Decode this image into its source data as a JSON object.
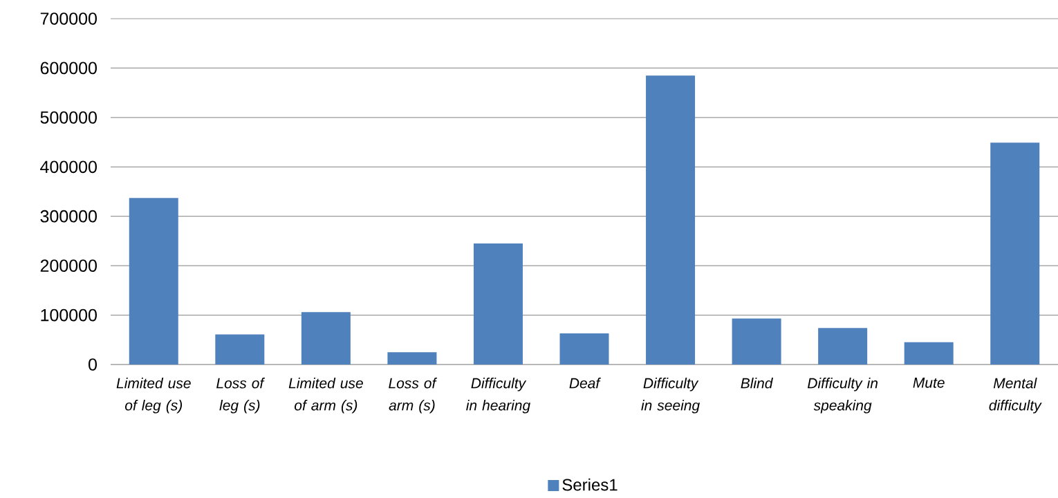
{
  "chart_data": {
    "type": "bar",
    "categories": [
      "Limited use of leg (s)",
      "Loss of leg (s)",
      "Limited use of arm (s)",
      "Loss of arm (s)",
      "Difficulty in hearing",
      "Deaf",
      "Difficulty in seeing",
      "Blind",
      "Difficulty in speaking",
      "Mute",
      "Mental difficulty"
    ],
    "series": [
      {
        "name": "Series1",
        "color": "#4f81bd",
        "values": [
          337000,
          61000,
          106000,
          25000,
          245000,
          63000,
          585000,
          93000,
          74000,
          45000,
          449000
        ]
      }
    ],
    "ylim": [
      0,
      700000
    ],
    "yticks": [
      0,
      100000,
      200000,
      300000,
      400000,
      500000,
      600000,
      700000
    ],
    "grid": "y",
    "legend": "bottom"
  }
}
